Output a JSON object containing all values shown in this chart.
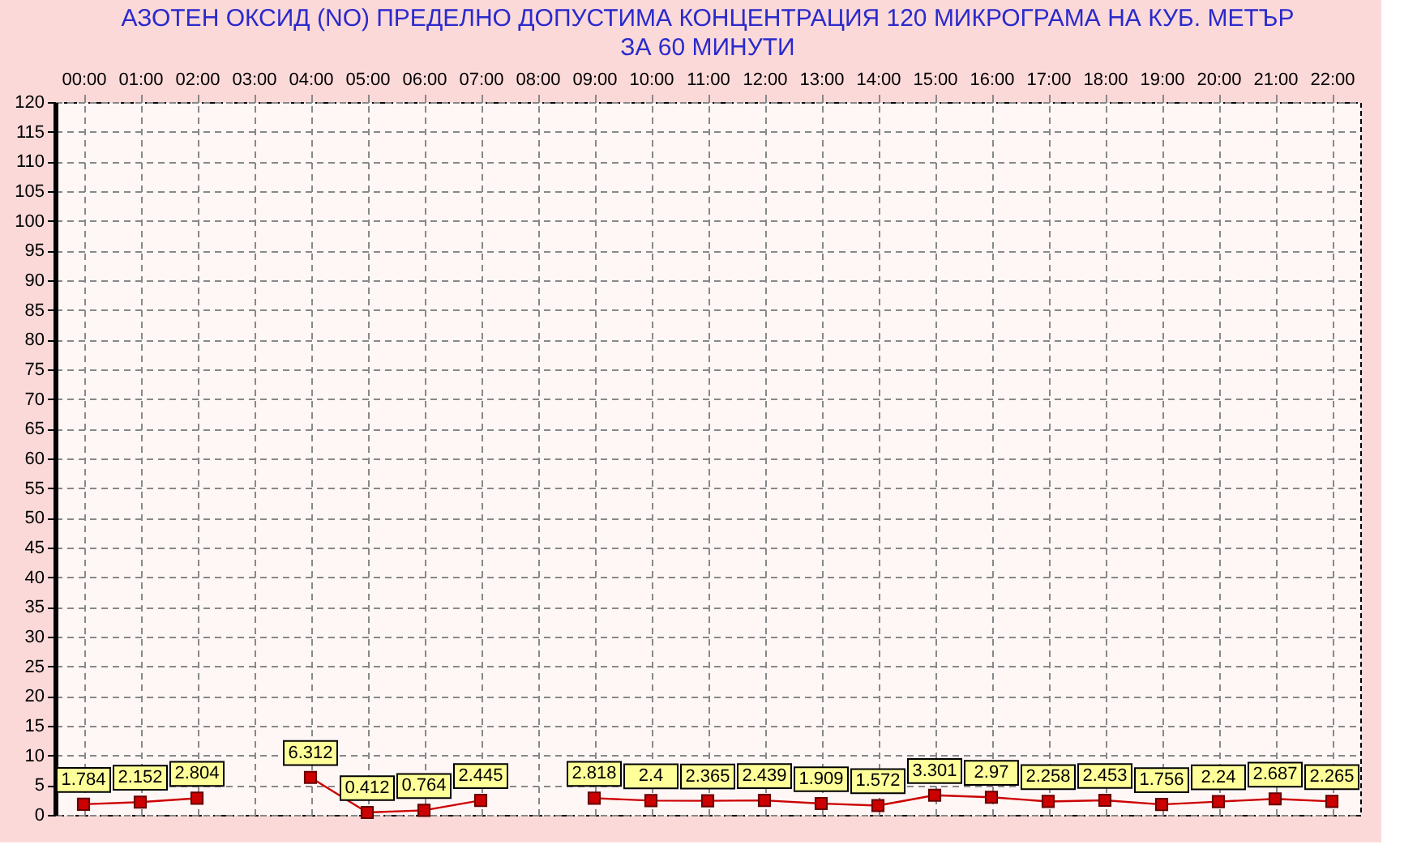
{
  "chart_data": {
    "type": "line",
    "title": "АЗОТЕН ОКСИД   (NO)     ПРЕДЕЛНО ДОПУСТИМА КОНЦЕНТРАЦИЯ 120 МИКРОГРАМА  НА КУБ. МЕТЪР\nЗА 60 МИНУТИ",
    "categories": [
      "00:00",
      "01:00",
      "02:00",
      "03:00",
      "04:00",
      "05:00",
      "06:00",
      "07:00",
      "08:00",
      "09:00",
      "10:00",
      "11:00",
      "12:00",
      "13:00",
      "14:00",
      "15:00",
      "16:00",
      "17:00",
      "18:00",
      "19:00",
      "20:00",
      "21:00",
      "22:00"
    ],
    "series": [
      {
        "color": "#cc0000",
        "values": [
          1.784,
          2.152,
          2.804,
          null,
          6.312,
          0.412,
          0.764,
          2.445,
          null,
          2.818,
          2.4,
          2.365,
          2.439,
          1.909,
          1.572,
          3.301,
          2.97,
          2.258,
          2.453,
          1.756,
          2.24,
          2.687,
          2.265
        ]
      }
    ],
    "ylim": [
      0,
      120
    ],
    "yticks": [
      0,
      5,
      10,
      15,
      20,
      25,
      30,
      35,
      40,
      45,
      50,
      55,
      60,
      65,
      70,
      75,
      80,
      85,
      90,
      95,
      100,
      105,
      110,
      115,
      120
    ],
    "grid": true,
    "marker": "square",
    "line_style": "solid",
    "data_labels": true
  }
}
